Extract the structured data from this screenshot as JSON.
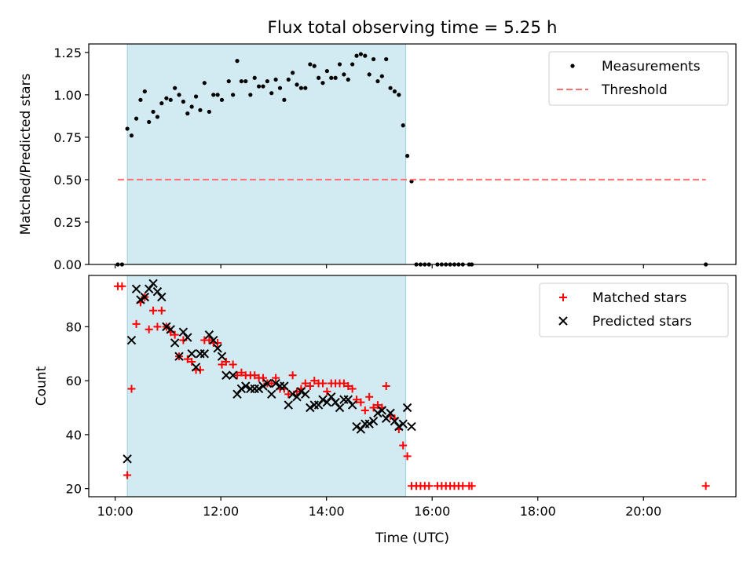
{
  "chart_data": [
    {
      "type": "scatter",
      "title": "Flux total observing time = 5.25 h",
      "xlabel": "",
      "ylabel": "Matched/Predicted stars",
      "xlim": [
        9.5,
        21.75
      ],
      "ylim": [
        0,
        1.3
      ],
      "x_ticks": [
        "10:00",
        "12:00",
        "14:00",
        "16:00",
        "18:00",
        "20:00"
      ],
      "y_ticks": [
        "0.00",
        "0.25",
        "0.50",
        "0.75",
        "1.00",
        "1.25"
      ],
      "shaded_span": {
        "x": [
          10.23,
          15.5
        ],
        "color": "#add8e6"
      },
      "legend_position": "top-right",
      "series": [
        {
          "name": "Measurements",
          "marker": "dot",
          "color": "#000000",
          "points": [
            [
              10.05,
              0.0
            ],
            [
              10.13,
              0.0
            ],
            [
              10.23,
              0.8
            ],
            [
              10.31,
              0.76
            ],
            [
              10.4,
              0.86
            ],
            [
              10.48,
              0.97
            ],
            [
              10.56,
              1.02
            ],
            [
              10.64,
              0.84
            ],
            [
              10.72,
              0.9
            ],
            [
              10.8,
              0.87
            ],
            [
              10.88,
              0.95
            ],
            [
              10.97,
              0.98
            ],
            [
              11.05,
              0.97
            ],
            [
              11.13,
              1.04
            ],
            [
              11.21,
              1.0
            ],
            [
              11.29,
              0.96
            ],
            [
              11.37,
              0.89
            ],
            [
              11.45,
              0.93
            ],
            [
              11.53,
              0.99
            ],
            [
              11.61,
              0.91
            ],
            [
              11.69,
              1.07
            ],
            [
              11.78,
              0.9
            ],
            [
              11.86,
              1.0
            ],
            [
              11.94,
              1.0
            ],
            [
              12.02,
              0.97
            ],
            [
              12.15,
              1.08
            ],
            [
              12.23,
              1.0
            ],
            [
              12.31,
              1.2
            ],
            [
              12.39,
              1.08
            ],
            [
              12.47,
              1.08
            ],
            [
              12.56,
              1.0
            ],
            [
              12.64,
              1.1
            ],
            [
              12.72,
              1.05
            ],
            [
              12.8,
              1.05
            ],
            [
              12.88,
              1.08
            ],
            [
              12.96,
              1.01
            ],
            [
              13.04,
              1.09
            ],
            [
              13.12,
              1.04
            ],
            [
              13.2,
              0.97
            ],
            [
              13.28,
              1.09
            ],
            [
              13.36,
              1.13
            ],
            [
              13.44,
              1.06
            ],
            [
              13.52,
              1.04
            ],
            [
              13.6,
              1.04
            ],
            [
              13.69,
              1.18
            ],
            [
              13.77,
              1.17
            ],
            [
              13.85,
              1.1
            ],
            [
              13.93,
              1.07
            ],
            [
              14.01,
              1.14
            ],
            [
              14.09,
              1.1
            ],
            [
              14.17,
              1.1
            ],
            [
              14.25,
              1.18
            ],
            [
              14.33,
              1.12
            ],
            [
              14.41,
              1.09
            ],
            [
              14.49,
              1.18
            ],
            [
              14.57,
              1.23
            ],
            [
              14.65,
              1.24
            ],
            [
              14.73,
              1.23
            ],
            [
              14.81,
              1.12
            ],
            [
              14.89,
              1.21
            ],
            [
              14.97,
              1.08
            ],
            [
              15.05,
              1.11
            ],
            [
              15.13,
              1.21
            ],
            [
              15.21,
              1.04
            ],
            [
              15.29,
              1.02
            ],
            [
              15.37,
              1.0
            ],
            [
              15.45,
              0.82
            ],
            [
              15.53,
              0.64
            ],
            [
              15.61,
              0.49
            ],
            [
              15.7,
              0.0
            ],
            [
              15.78,
              0.0
            ],
            [
              15.86,
              0.0
            ],
            [
              15.94,
              0.0
            ],
            [
              16.1,
              0.0
            ],
            [
              16.18,
              0.0
            ],
            [
              16.26,
              0.0
            ],
            [
              16.34,
              0.0
            ],
            [
              16.42,
              0.0
            ],
            [
              16.5,
              0.0
            ],
            [
              16.58,
              0.0
            ],
            [
              16.7,
              0.0
            ],
            [
              16.75,
              0.0
            ],
            [
              21.18,
              0.0
            ]
          ]
        },
        {
          "name": "Threshold",
          "marker": "dashed-line",
          "color": "#ff7070",
          "points": [
            [
              10.05,
              0.5
            ],
            [
              21.18,
              0.5
            ]
          ]
        }
      ]
    },
    {
      "type": "scatter",
      "title": "",
      "xlabel": "Time (UTC)",
      "ylabel": "Count",
      "xlim": [
        9.5,
        21.75
      ],
      "ylim": [
        17,
        99
      ],
      "x_ticks": [
        "10:00",
        "12:00",
        "14:00",
        "16:00",
        "18:00",
        "20:00"
      ],
      "y_ticks": [
        "20",
        "40",
        "60",
        "80"
      ],
      "shaded_span": {
        "x": [
          10.23,
          15.5
        ],
        "color": "#add8e6"
      },
      "legend_position": "top-right",
      "series": [
        {
          "name": "Matched stars",
          "marker": "plus",
          "color": "#ff0000",
          "points": [
            [
              10.05,
              95
            ],
            [
              10.13,
              95
            ],
            [
              10.23,
              25
            ],
            [
              10.31,
              57
            ],
            [
              10.4,
              81
            ],
            [
              10.48,
              89
            ],
            [
              10.56,
              91
            ],
            [
              10.64,
              79
            ],
            [
              10.72,
              86
            ],
            [
              10.8,
              80
            ],
            [
              10.88,
              86
            ],
            [
              10.97,
              80
            ],
            [
              11.05,
              78
            ],
            [
              11.13,
              77
            ],
            [
              11.21,
              69
            ],
            [
              11.29,
              75
            ],
            [
              11.37,
              68
            ],
            [
              11.45,
              67
            ],
            [
              11.53,
              64
            ],
            [
              11.61,
              64
            ],
            [
              11.69,
              75
            ],
            [
              11.78,
              75
            ],
            [
              11.86,
              74
            ],
            [
              11.94,
              74
            ],
            [
              12.02,
              66
            ],
            [
              12.1,
              67
            ],
            [
              12.23,
              66
            ],
            [
              12.31,
              62
            ],
            [
              12.39,
              63
            ],
            [
              12.47,
              62
            ],
            [
              12.56,
              62
            ],
            [
              12.64,
              62
            ],
            [
              12.72,
              61
            ],
            [
              12.8,
              61
            ],
            [
              12.88,
              59
            ],
            [
              12.96,
              59
            ],
            [
              13.04,
              61
            ],
            [
              13.12,
              57
            ],
            [
              13.2,
              57
            ],
            [
              13.28,
              55
            ],
            [
              13.36,
              62
            ],
            [
              13.44,
              56
            ],
            [
              13.52,
              57
            ],
            [
              13.6,
              59
            ],
            [
              13.69,
              58
            ],
            [
              13.77,
              60
            ],
            [
              13.85,
              59
            ],
            [
              13.93,
              59
            ],
            [
              14.01,
              56
            ],
            [
              14.09,
              59
            ],
            [
              14.17,
              59
            ],
            [
              14.25,
              59
            ],
            [
              14.33,
              59
            ],
            [
              14.41,
              58
            ],
            [
              14.49,
              57
            ],
            [
              14.57,
              53
            ],
            [
              14.65,
              52
            ],
            [
              14.73,
              49
            ],
            [
              14.81,
              54
            ],
            [
              14.89,
              50
            ],
            [
              14.97,
              51
            ],
            [
              15.05,
              50
            ],
            [
              15.13,
              58
            ],
            [
              15.21,
              47
            ],
            [
              15.29,
              46
            ],
            [
              15.37,
              42
            ],
            [
              15.45,
              36
            ],
            [
              15.53,
              32
            ],
            [
              15.61,
              21
            ],
            [
              15.7,
              21
            ],
            [
              15.78,
              21
            ],
            [
              15.86,
              21
            ],
            [
              15.94,
              21
            ],
            [
              16.1,
              21
            ],
            [
              16.18,
              21
            ],
            [
              16.26,
              21
            ],
            [
              16.34,
              21
            ],
            [
              16.42,
              21
            ],
            [
              16.5,
              21
            ],
            [
              16.58,
              21
            ],
            [
              16.7,
              21
            ],
            [
              16.75,
              21
            ],
            [
              21.18,
              21
            ]
          ]
        },
        {
          "name": "Predicted stars",
          "marker": "x",
          "color": "#000000",
          "points": [
            [
              10.23,
              31
            ],
            [
              10.31,
              75
            ],
            [
              10.4,
              94
            ],
            [
              10.48,
              90
            ],
            [
              10.56,
              91
            ],
            [
              10.64,
              94
            ],
            [
              10.72,
              96
            ],
            [
              10.8,
              93
            ],
            [
              10.88,
              91
            ],
            [
              10.97,
              80
            ],
            [
              11.05,
              79
            ],
            [
              11.13,
              74
            ],
            [
              11.21,
              69
            ],
            [
              11.29,
              78
            ],
            [
              11.37,
              76
            ],
            [
              11.45,
              70
            ],
            [
              11.53,
              65
            ],
            [
              11.61,
              70
            ],
            [
              11.69,
              70
            ],
            [
              11.78,
              77
            ],
            [
              11.86,
              75
            ],
            [
              11.94,
              72
            ],
            [
              12.02,
              69
            ],
            [
              12.1,
              62
            ],
            [
              12.23,
              62
            ],
            [
              12.31,
              55
            ],
            [
              12.39,
              57
            ],
            [
              12.47,
              58
            ],
            [
              12.56,
              57
            ],
            [
              12.64,
              57
            ],
            [
              12.72,
              57
            ],
            [
              12.8,
              58
            ],
            [
              12.88,
              59
            ],
            [
              12.96,
              55
            ],
            [
              13.04,
              59
            ],
            [
              13.12,
              58
            ],
            [
              13.2,
              58
            ],
            [
              13.28,
              51
            ],
            [
              13.36,
              55
            ],
            [
              13.44,
              54
            ],
            [
              13.52,
              56
            ],
            [
              13.6,
              55
            ],
            [
              13.69,
              50
            ],
            [
              13.77,
              51
            ],
            [
              13.85,
              51
            ],
            [
              13.93,
              53
            ],
            [
              14.01,
              52
            ],
            [
              14.09,
              54
            ],
            [
              14.17,
              52
            ],
            [
              14.25,
              50
            ],
            [
              14.33,
              53
            ],
            [
              14.41,
              53
            ],
            [
              14.49,
              51
            ],
            [
              14.57,
              43
            ],
            [
              14.65,
              42
            ],
            [
              14.73,
              44
            ],
            [
              14.81,
              44
            ],
            [
              14.89,
              45
            ],
            [
              14.97,
              48
            ],
            [
              15.05,
              49
            ],
            [
              15.13,
              46
            ],
            [
              15.21,
              48
            ],
            [
              15.29,
              45
            ],
            [
              15.37,
              43
            ],
            [
              15.45,
              44
            ],
            [
              15.53,
              50
            ],
            [
              15.61,
              43
            ]
          ]
        }
      ]
    }
  ]
}
